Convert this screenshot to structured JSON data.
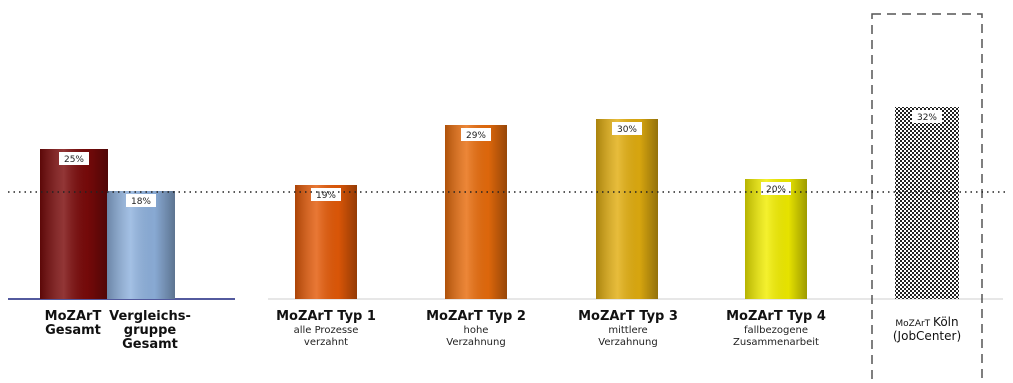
{
  "chart_data": {
    "type": "bar",
    "title": "",
    "xlabel": "",
    "ylabel": "",
    "ylim": [
      0,
      40
    ],
    "reference_value": 18,
    "categories": [
      {
        "main": [
          "MoZArT",
          "Gesamt"
        ],
        "sub": [],
        "value": 25,
        "label": "25%",
        "color": "#7a0a0a",
        "pattern": "solid"
      },
      {
        "main": [
          "Vergleichs-",
          "gruppe",
          "Gesamt"
        ],
        "sub": [],
        "value": 18,
        "label": "18%",
        "color": "#8fb2de",
        "pattern": "solid"
      },
      {
        "main": [
          "MoZArT Typ 1"
        ],
        "sub": [
          "alle Prozesse",
          "verzahnt"
        ],
        "value": 19,
        "label": "19%",
        "color": "#e45a08",
        "pattern": "solid"
      },
      {
        "main": [
          "MoZArT Typ 2"
        ],
        "sub": [
          "hohe",
          "Verzahnung"
        ],
        "value": 29,
        "label": "29%",
        "color": "#e86c0c",
        "pattern": "solid"
      },
      {
        "main": [
          "MoZArT Typ 3"
        ],
        "sub": [
          "mittlere",
          "Verzahnung"
        ],
        "value": 30,
        "label": "30%",
        "color": "#e2ae10",
        "pattern": "solid"
      },
      {
        "main": [
          "MoZArT Typ 4"
        ],
        "sub": [
          "fallbezogene",
          "Zusammenarbeit"
        ],
        "value": 20,
        "label": "20%",
        "color": "#f2ee00",
        "pattern": "solid"
      },
      {
        "main_small": "MoZArT",
        "main_big": "Köln",
        "main_line2": "(JobCenter)",
        "value": 32,
        "label": "32%",
        "color": "#222222",
        "pattern": "checker"
      }
    ]
  }
}
